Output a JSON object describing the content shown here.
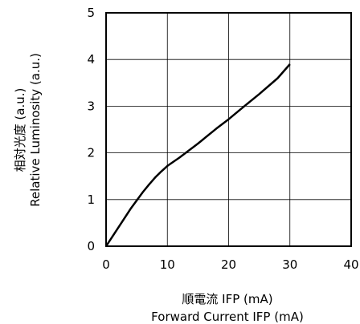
{
  "chart_data": {
    "type": "line",
    "xlabel": [
      "順電流 IFP (mA)",
      "Forward Current IFP (mA)"
    ],
    "ylabel": [
      "相対光度 (a.u.)",
      "Relative Luminosity (a.u.)"
    ],
    "xlim": [
      0,
      40
    ],
    "ylim": [
      0,
      5
    ],
    "xticks": [
      "0",
      "10",
      "20",
      "30",
      "40"
    ],
    "yticks": [
      "0",
      "1",
      "2",
      "3",
      "4",
      "5"
    ],
    "grid": true,
    "series": [
      {
        "x": [
          0,
          1,
          2,
          3,
          4,
          5,
          6,
          7,
          8,
          9,
          10,
          12,
          15,
          18,
          20,
          22,
          25,
          28,
          30
        ],
        "y": [
          0,
          0.2,
          0.4,
          0.6,
          0.8,
          0.98,
          1.16,
          1.32,
          1.47,
          1.6,
          1.72,
          1.9,
          2.2,
          2.52,
          2.72,
          2.94,
          3.26,
          3.6,
          3.9
        ]
      }
    ]
  }
}
